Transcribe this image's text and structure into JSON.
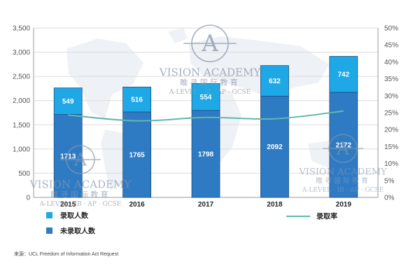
{
  "chart_data": {
    "type": "bar",
    "stacked": true,
    "categories": [
      "2015",
      "2016",
      "2017",
      "2018",
      "2019"
    ],
    "series": [
      {
        "name": "未录取人数",
        "type": "bar",
        "axis": "left",
        "color": "#2e7bc4",
        "values": [
          1713,
          1765,
          1798,
          2092,
          2172
        ]
      },
      {
        "name": "录取人数",
        "type": "bar",
        "axis": "left",
        "color": "#1ea8e6",
        "values": [
          549,
          516,
          554,
          632,
          742
        ]
      },
      {
        "name": "录取率",
        "type": "line",
        "axis": "right",
        "color": "#5fb8ac",
        "values": [
          24.3,
          22.6,
          23.6,
          23.2,
          25.5
        ]
      }
    ],
    "y_left": {
      "min": 0,
      "max": 3500,
      "step": 500,
      "tick_labels": [
        "0",
        "500",
        "1,000",
        "1,500",
        "2,000",
        "2,500",
        "3,000",
        "3,500"
      ]
    },
    "y_right": {
      "min": 0,
      "max": 50,
      "step": 5,
      "tick_labels": [
        "0%",
        "5%",
        "10%",
        "15%",
        "20%",
        "25%",
        "30%",
        "35%",
        "40%",
        "45%",
        "50%"
      ]
    },
    "legend": {
      "placement": "bottom",
      "admitted": "录取人数",
      "not_admitted": "未录取人数",
      "rate": "录取率"
    },
    "source": "来源：UCL Freedom of Information Act Request"
  },
  "watermark": {
    "logo_letter": "A",
    "name": "VISION ACADEMY",
    "chinese": "睢寻国际教育",
    "courses": "A-LEVEL · IB · AP · GCSE",
    "color": "#8a96ac"
  }
}
